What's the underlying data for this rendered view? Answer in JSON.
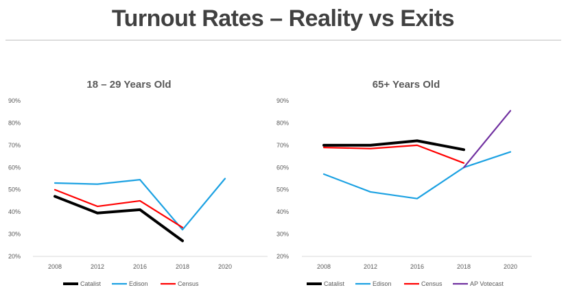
{
  "slide": {
    "title": "Turnout Rates – Reality vs Exits"
  },
  "chart_data": [
    {
      "type": "line",
      "title": "18 – 29 Years Old",
      "x": [
        "2008",
        "2012",
        "2016",
        "2018",
        "2020"
      ],
      "yticks": [
        "20%",
        "30%",
        "40%",
        "50%",
        "60%",
        "70%",
        "80%",
        "90%"
      ],
      "ylim": [
        20,
        90
      ],
      "grid": false,
      "legend": "bottom",
      "series": [
        {
          "name": "Catalist",
          "color": "#000000",
          "values": [
            47,
            39.5,
            41,
            27,
            null
          ]
        },
        {
          "name": "Edison",
          "color": "#1ba1e2",
          "values": [
            53,
            52.5,
            54.5,
            32,
            55
          ]
        },
        {
          "name": "Census",
          "color": "#ff0000",
          "values": [
            50,
            42.5,
            45,
            33,
            null
          ]
        }
      ]
    },
    {
      "type": "line",
      "title": "65+ Years Old",
      "x": [
        "2008",
        "2012",
        "2016",
        "2018",
        "2020"
      ],
      "yticks": [
        "20%",
        "30%",
        "40%",
        "50%",
        "60%",
        "70%",
        "80%",
        "90%"
      ],
      "ylim": [
        20,
        90
      ],
      "grid": false,
      "legend": "bottom",
      "series": [
        {
          "name": "Catalist",
          "color": "#000000",
          "values": [
            70,
            70,
            72,
            68,
            null
          ]
        },
        {
          "name": "Edison",
          "color": "#1ba1e2",
          "values": [
            57,
            49,
            46,
            60,
            67
          ]
        },
        {
          "name": "Census",
          "color": "#ff0000",
          "values": [
            69,
            68.5,
            70,
            62,
            null
          ]
        },
        {
          "name": "AP Votecast",
          "color": "#7030a0",
          "values": [
            null,
            null,
            null,
            60,
            85.5
          ]
        }
      ]
    }
  ]
}
